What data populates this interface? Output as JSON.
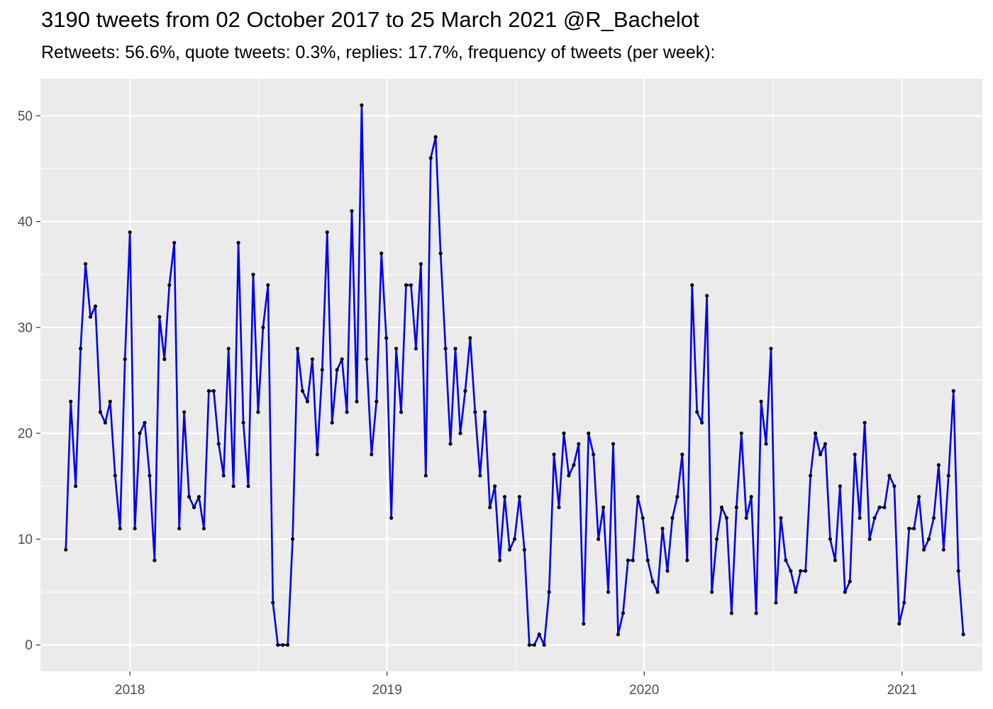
{
  "chart_data": {
    "type": "line",
    "title": "3190 tweets from 02 October 2017 to 25 March 2021 @R_Bachelot",
    "subtitle": "Retweets: 56.6%, quote tweets: 0.3%, replies: 17.7%, frequency of tweets (per week):",
    "xlabel": "",
    "ylabel": "",
    "x_ticks": [
      "2018",
      "2019",
      "2020",
      "2021"
    ],
    "y_ticks": [
      0,
      10,
      20,
      30,
      40,
      50
    ],
    "xlim": [
      "2017-08-27",
      "2021-04-25"
    ],
    "ylim": [
      -2.5,
      53.5
    ],
    "grid": true,
    "line_color": "#0000EE",
    "point_color": "#000000",
    "panel_background": "#EBEBEB",
    "x_start": "2017-10-02",
    "x_interval": "1 week",
    "series": [
      {
        "values": [
          9,
          23,
          15,
          28,
          36,
          31,
          32,
          22,
          21,
          23,
          16,
          11,
          27,
          39,
          11,
          20,
          21,
          16,
          8,
          31,
          27,
          34,
          38,
          11,
          22,
          14,
          13,
          14,
          11,
          24,
          24,
          19,
          16,
          28,
          15,
          38,
          21,
          15,
          35,
          22,
          30,
          34,
          4,
          0,
          0,
          0,
          10,
          28,
          24,
          23,
          27,
          18,
          26,
          39,
          21,
          26,
          27,
          22,
          41,
          23,
          51,
          27,
          18,
          23,
          37,
          29,
          12,
          28,
          22,
          34,
          34,
          28,
          36,
          16,
          46,
          48,
          37,
          28,
          19,
          28,
          20,
          24,
          29,
          22,
          16,
          22,
          13,
          15,
          8,
          14,
          9,
          10,
          14,
          9,
          0,
          0,
          1,
          0,
          5,
          18,
          13,
          20,
          16,
          17,
          19,
          2,
          20,
          18,
          10,
          13,
          5,
          19,
          1,
          3,
          8,
          8,
          14,
          12,
          8,
          6,
          5,
          11,
          7,
          12,
          14,
          18,
          8,
          34,
          22,
          21,
          33,
          5,
          10,
          13,
          12,
          3,
          13,
          20,
          12,
          14,
          3,
          23,
          19,
          28,
          4,
          12,
          8,
          7,
          5,
          7,
          7,
          16,
          20,
          18,
          19,
          10,
          8,
          15,
          5,
          6,
          18,
          12,
          21,
          10,
          12,
          13,
          13,
          16,
          15,
          2,
          4,
          11,
          11,
          14,
          9,
          10,
          12,
          17,
          9,
          16,
          24,
          7,
          1
        ]
      }
    ]
  }
}
